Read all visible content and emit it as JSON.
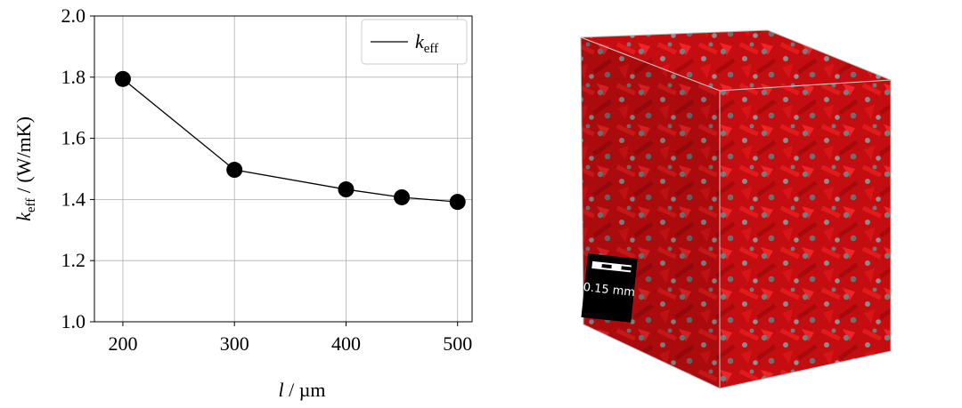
{
  "chart_data": {
    "type": "line",
    "x": [
      200,
      300,
      400,
      450,
      500
    ],
    "values": [
      1.794,
      1.497,
      1.433,
      1.407,
      1.392
    ],
    "color": "#000000",
    "xlim": [
      174.5,
      513
    ],
    "ylim": [
      1.0,
      2.0
    ],
    "xticks": [
      200,
      300,
      400,
      500
    ],
    "yticks": [
      {
        "value": 1.0,
        "label": "1.0"
      },
      {
        "value": 1.2,
        "label": "1.2"
      },
      {
        "value": 1.4,
        "label": "1.4"
      },
      {
        "value": 1.6,
        "label": "1.6"
      },
      {
        "value": 1.8,
        "label": "1.8"
      },
      {
        "value": 2.0,
        "label": "2.0"
      }
    ],
    "grid": true,
    "legend": [
      "k",
      "eff"
    ],
    "legend_position": "upper right",
    "xlabel": [
      "l",
      " / µm"
    ],
    "ylabel": [
      "k",
      "eff",
      " / (W/mK)"
    ]
  },
  "image": {
    "scale_bar": "0.15 mm"
  }
}
